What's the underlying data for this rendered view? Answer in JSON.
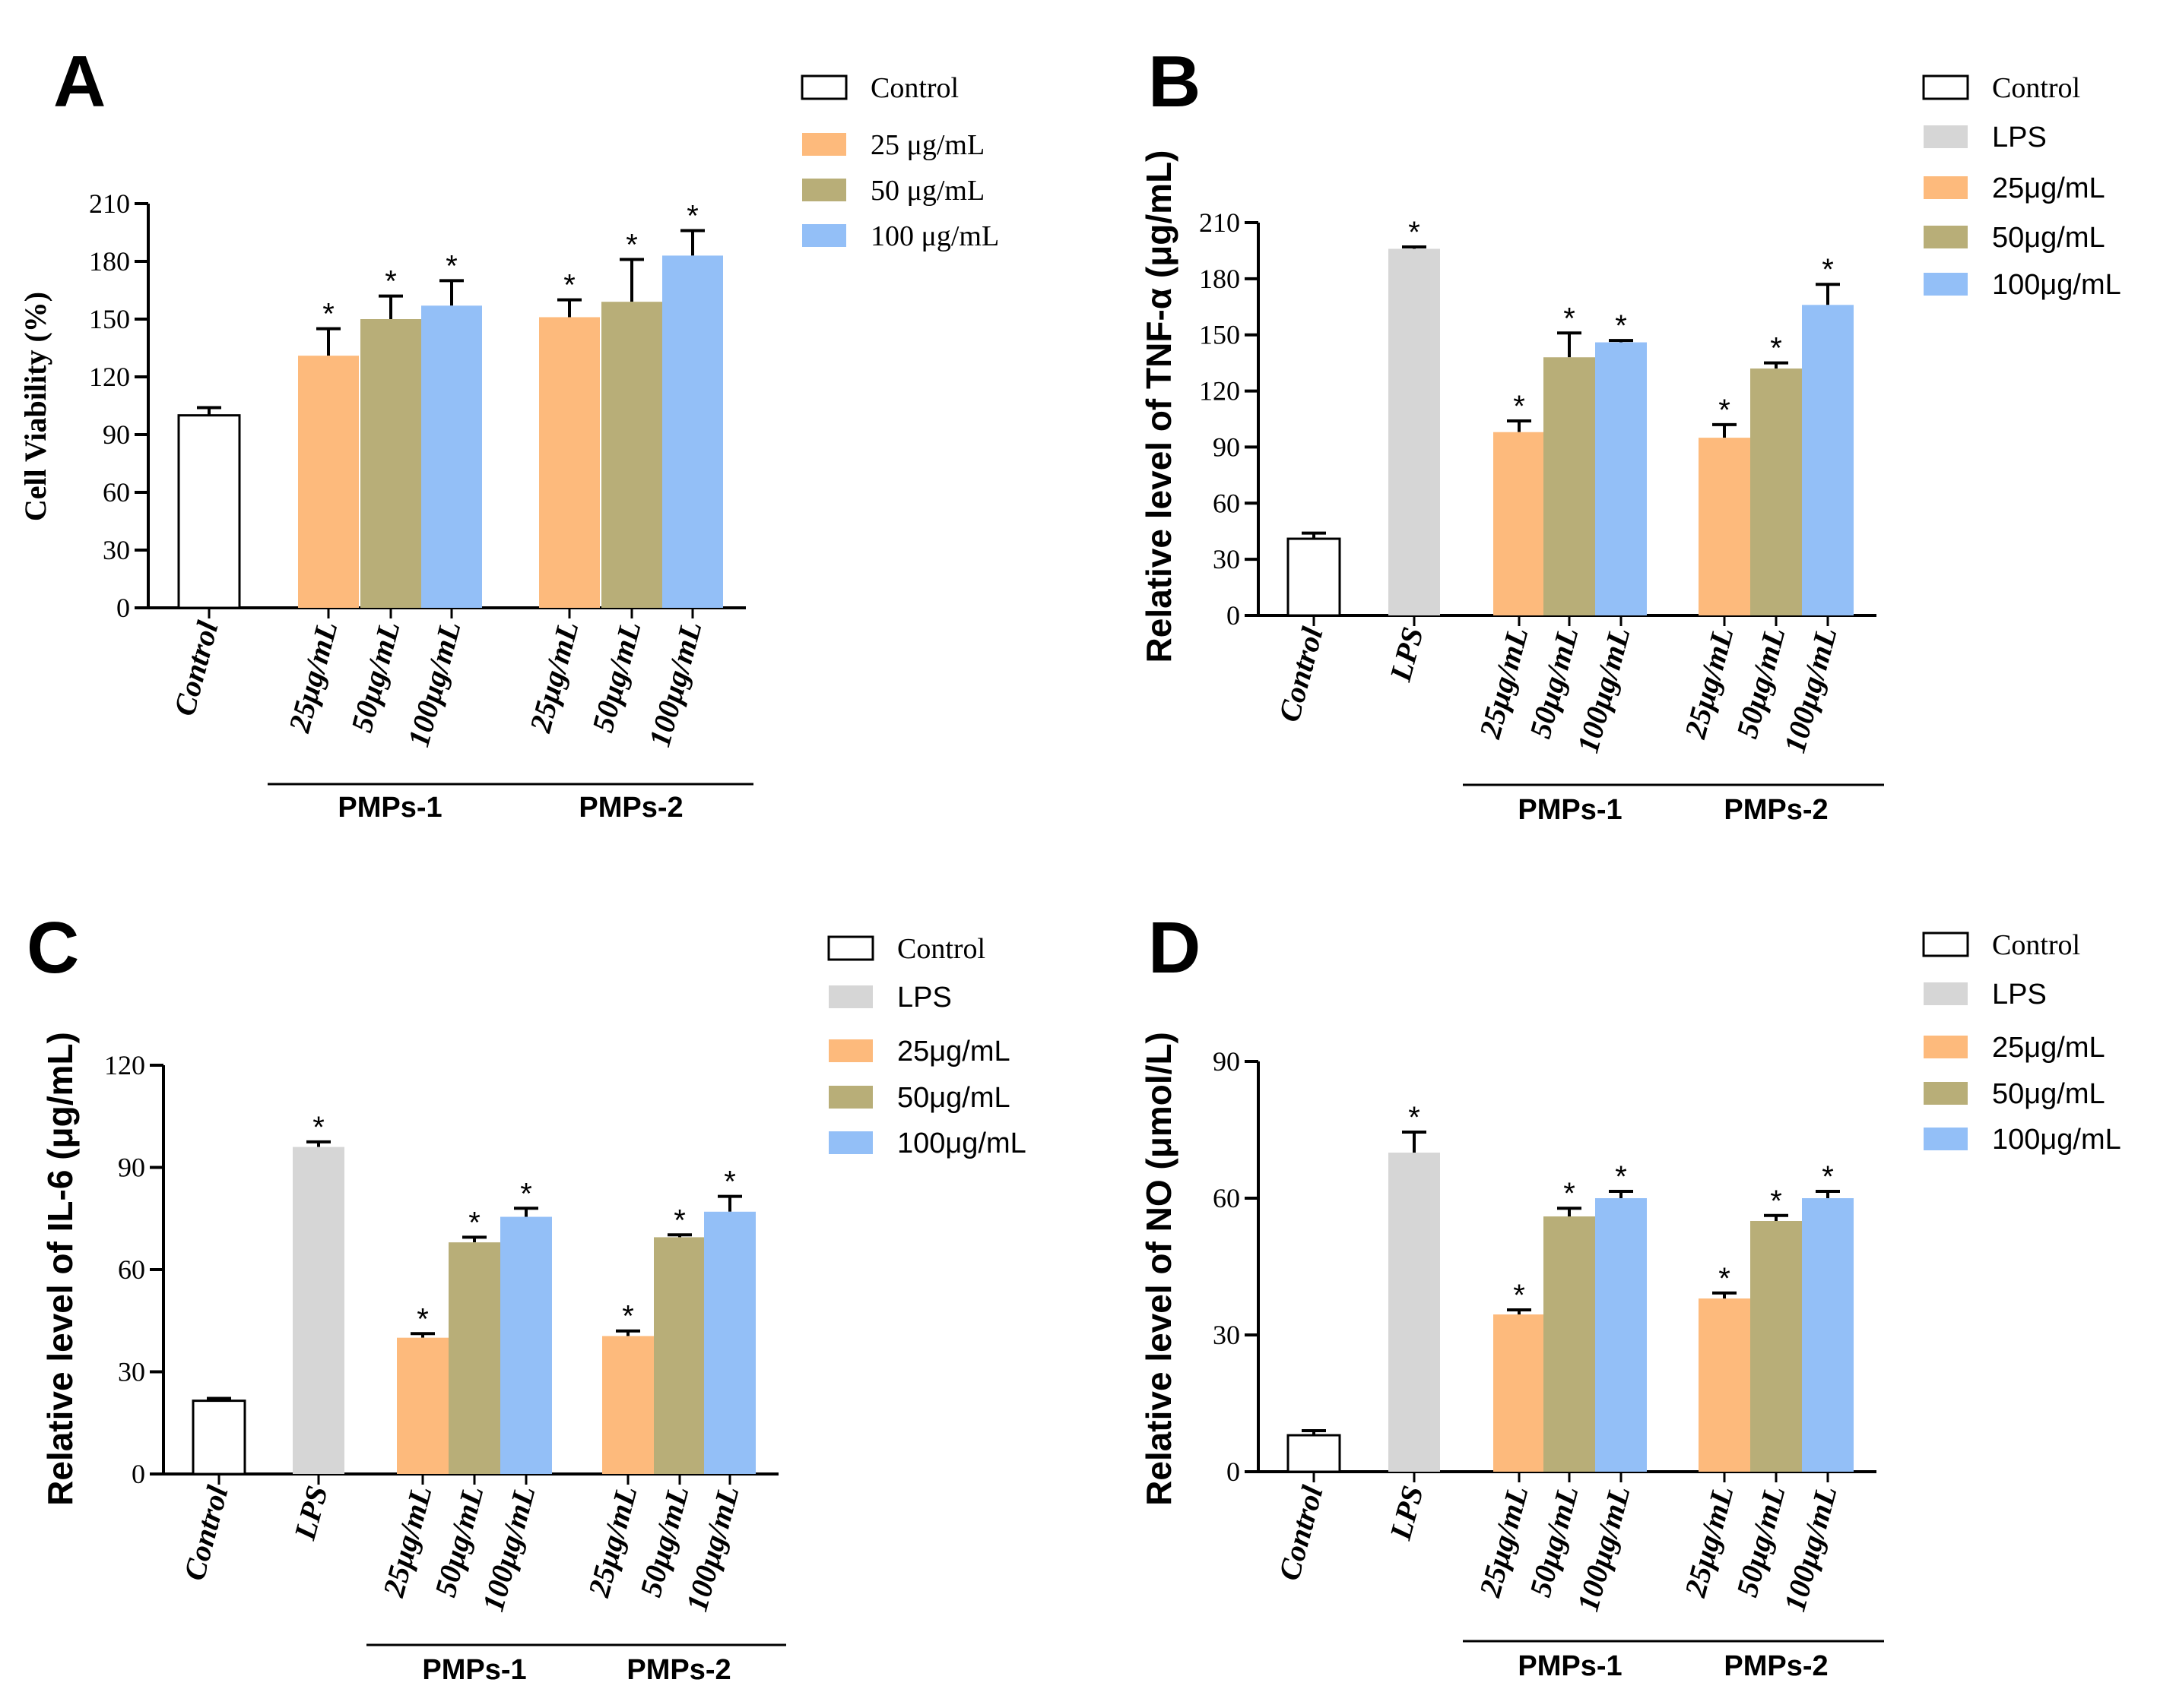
{
  "colors": {
    "control": "#ffffff",
    "lps": "#d6d6d6",
    "c25": "#fdba7c",
    "c50": "#b8ae78",
    "c100": "#93bff7",
    "axis": "#000000"
  },
  "chart_data": [
    {
      "id": "A",
      "type": "bar",
      "panel_label": "A",
      "ylabel": "Cell Viability (%)",
      "ylim": [
        0,
        210
      ],
      "yticks": [
        0,
        30,
        60,
        90,
        120,
        150,
        180,
        210
      ],
      "axis_font": "serif",
      "legend": [
        "Control",
        "25 μg/mL",
        "50 μg/mL",
        "100 μg/mL"
      ],
      "legend_keys": [
        "control",
        "c25",
        "c50",
        "c100"
      ],
      "bars": [
        {
          "label": "Control",
          "value": 100,
          "err": 4,
          "color": "control",
          "star": false
        },
        {
          "label": "25μg/mL",
          "value": 131,
          "err": 14,
          "color": "c25",
          "star": true
        },
        {
          "label": "50μg/mL",
          "value": 150,
          "err": 12,
          "color": "c50",
          "star": true
        },
        {
          "label": "100μg/mL",
          "value": 157,
          "err": 13,
          "color": "c100",
          "star": true
        },
        {
          "label": "25μg/mL",
          "value": 151,
          "err": 9,
          "color": "c25",
          "star": true
        },
        {
          "label": "50μg/mL",
          "value": 159,
          "err": 22,
          "color": "c50",
          "star": true
        },
        {
          "label": "100μg/mL",
          "value": 183,
          "err": 13,
          "color": "c100",
          "star": true
        }
      ],
      "groups": [
        {
          "name": "PMPs-1",
          "from": 1,
          "to": 3
        },
        {
          "name": "PMPs-2",
          "from": 4,
          "to": 6
        }
      ]
    },
    {
      "id": "B",
      "type": "bar",
      "panel_label": "B",
      "ylabel": "Relative level of TNF-α (μg/mL)",
      "ylim": [
        0,
        210
      ],
      "yticks": [
        0,
        30,
        60,
        90,
        120,
        150,
        180,
        210
      ],
      "axis_font": "serif",
      "legend": [
        "Control",
        "LPS",
        "25μg/mL",
        "50μg/mL",
        "100μg/mL"
      ],
      "legend_keys": [
        "control",
        "lps",
        "c25",
        "c50",
        "c100"
      ],
      "bars": [
        {
          "label": "Control",
          "value": 41,
          "err": 3,
          "color": "control",
          "star": false
        },
        {
          "label": "LPS",
          "value": 196,
          "err": 1,
          "color": "lps",
          "star": true
        },
        {
          "label": "25μg/mL",
          "value": 98,
          "err": 6,
          "color": "c25",
          "star": true
        },
        {
          "label": "50μg/mL",
          "value": 138,
          "err": 13,
          "color": "c50",
          "star": true
        },
        {
          "label": "100μg/mL",
          "value": 146,
          "err": 1,
          "color": "c100",
          "star": true
        },
        {
          "label": "25μg/mL",
          "value": 95,
          "err": 7,
          "color": "c25",
          "star": true
        },
        {
          "label": "50μg/mL",
          "value": 132,
          "err": 3,
          "color": "c50",
          "star": true
        },
        {
          "label": "100μg/mL",
          "value": 166,
          "err": 11,
          "color": "c100",
          "star": true
        }
      ],
      "groups": [
        {
          "name": "PMPs-1",
          "from": 2,
          "to": 4
        },
        {
          "name": "PMPs-2",
          "from": 5,
          "to": 7
        }
      ]
    },
    {
      "id": "C",
      "type": "bar",
      "panel_label": "C",
      "ylabel": "Relative level of IL-6 (μg/mL)",
      "ylim": [
        0,
        120
      ],
      "yticks": [
        0,
        30,
        60,
        90,
        120
      ],
      "axis_font": "serif",
      "legend": [
        "Control",
        "LPS",
        "25μg/mL",
        "50μg/mL",
        "100μg/mL"
      ],
      "legend_keys": [
        "control",
        "lps",
        "c25",
        "c50",
        "c100"
      ],
      "bars": [
        {
          "label": "Control",
          "value": 21.5,
          "err": 0.7,
          "color": "control",
          "star": false
        },
        {
          "label": "LPS",
          "value": 96,
          "err": 1.5,
          "color": "lps",
          "star": true
        },
        {
          "label": "25μg/mL",
          "value": 40,
          "err": 1.2,
          "color": "c25",
          "star": true
        },
        {
          "label": "50μg/mL",
          "value": 68,
          "err": 1.5,
          "color": "c50",
          "star": true
        },
        {
          "label": "100μg/mL",
          "value": 75.5,
          "err": 2.5,
          "color": "c100",
          "star": true
        },
        {
          "label": "25μg/mL",
          "value": 40.5,
          "err": 1.5,
          "color": "c25",
          "star": true
        },
        {
          "label": "50μg/mL",
          "value": 69.5,
          "err": 0.7,
          "color": "c50",
          "star": true
        },
        {
          "label": "100μg/mL",
          "value": 77,
          "err": 4.5,
          "color": "c100",
          "star": true
        }
      ],
      "groups": [
        {
          "name": "PMPs-1",
          "from": 2,
          "to": 4
        },
        {
          "name": "PMPs-2",
          "from": 5,
          "to": 7
        }
      ]
    },
    {
      "id": "D",
      "type": "bar",
      "panel_label": "D",
      "ylabel": "Relative level of NO (μmol/L)",
      "ylim": [
        0,
        90
      ],
      "yticks": [
        0,
        30,
        60,
        90
      ],
      "axis_font": "serif",
      "legend": [
        "Control",
        "LPS",
        "25μg/mL",
        "50μg/mL",
        "100μg/mL"
      ],
      "legend_keys": [
        "control",
        "lps",
        "c25",
        "c50",
        "c100"
      ],
      "bars": [
        {
          "label": "Control",
          "value": 8,
          "err": 1,
          "color": "control",
          "star": false
        },
        {
          "label": "LPS",
          "value": 70,
          "err": 4.5,
          "color": "lps",
          "star": true
        },
        {
          "label": "25μg/mL",
          "value": 34.5,
          "err": 1,
          "color": "c25",
          "star": true
        },
        {
          "label": "50μg/mL",
          "value": 56,
          "err": 1.8,
          "color": "c50",
          "star": true
        },
        {
          "label": "100μg/mL",
          "value": 60,
          "err": 1.5,
          "color": "c100",
          "star": true
        },
        {
          "label": "25μg/mL",
          "value": 38,
          "err": 1.2,
          "color": "c25",
          "star": true
        },
        {
          "label": "50μg/mL",
          "value": 55,
          "err": 1.2,
          "color": "c50",
          "star": true
        },
        {
          "label": "100μg/mL",
          "value": 60,
          "err": 1.5,
          "color": "c100",
          "star": true
        }
      ],
      "groups": [
        {
          "name": "PMPs-1",
          "from": 2,
          "to": 4
        },
        {
          "name": "PMPs-2",
          "from": 5,
          "to": 7
        }
      ]
    }
  ]
}
